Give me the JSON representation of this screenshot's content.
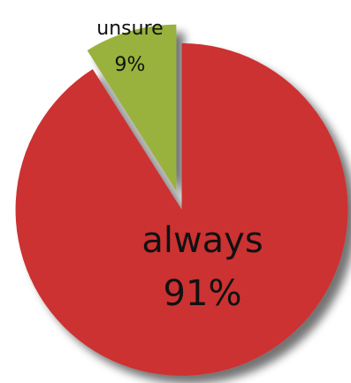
{
  "chart_data": {
    "type": "pie",
    "title": "",
    "exploded": true,
    "shadow": true,
    "slices": [
      {
        "label": "always",
        "value": 91,
        "value_text": "91%",
        "color": "#cc3333"
      },
      {
        "label": "unsure",
        "value": 9,
        "value_text": "9%",
        "color": "#99b23c"
      }
    ]
  }
}
